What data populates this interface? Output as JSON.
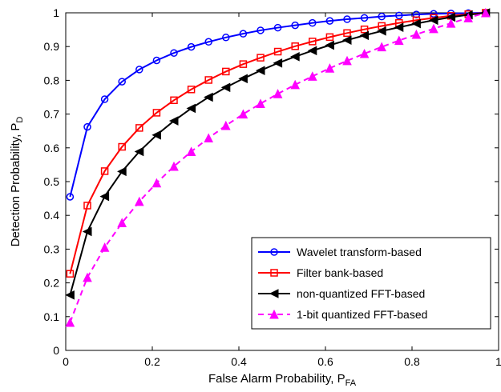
{
  "chart_data": {
    "type": "line",
    "xlabel": "False Alarm Probability, P",
    "xlabel_sub": "FA",
    "ylabel": "Detection Probability, P",
    "ylabel_sub": "D",
    "xlim": [
      0,
      1
    ],
    "ylim": [
      0,
      1
    ],
    "x_ticks": [
      "0",
      "0.2",
      "0.4",
      "0.6",
      "0.8",
      "1"
    ],
    "y_ticks": [
      "0",
      "0.1",
      "0.2",
      "0.3",
      "0.4",
      "0.5",
      "0.6",
      "0.7",
      "0.8",
      "0.9",
      "1"
    ],
    "grid": false,
    "legend_position": "bottom-right",
    "x": [
      0.01,
      0.05,
      0.09,
      0.13,
      0.17,
      0.21,
      0.25,
      0.29,
      0.33,
      0.37,
      0.41,
      0.45,
      0.49,
      0.53,
      0.57,
      0.61,
      0.65,
      0.69,
      0.73,
      0.77,
      0.81,
      0.85,
      0.89,
      0.93,
      0.97
    ],
    "series": [
      {
        "name": "Wavelet transform-based",
        "color": "#0000ff",
        "marker": "circle",
        "dash": "solid",
        "values": [
          0.455,
          0.662,
          0.744,
          0.796,
          0.832,
          0.859,
          0.881,
          0.899,
          0.914,
          0.927,
          0.938,
          0.948,
          0.956,
          0.963,
          0.97,
          0.976,
          0.981,
          0.985,
          0.989,
          0.992,
          0.995,
          0.997,
          0.998,
          0.999,
          1.0
        ]
      },
      {
        "name": "Filter bank-based",
        "color": "#ff0000",
        "marker": "square",
        "dash": "solid",
        "values": [
          0.227,
          0.429,
          0.531,
          0.603,
          0.659,
          0.704,
          0.741,
          0.773,
          0.801,
          0.826,
          0.848,
          0.867,
          0.885,
          0.901,
          0.915,
          0.928,
          0.94,
          0.951,
          0.961,
          0.97,
          0.978,
          0.985,
          0.991,
          0.996,
          1.0
        ]
      },
      {
        "name": "non-quantized FFT-based",
        "color": "#000000",
        "marker": "triangle-left",
        "dash": "solid",
        "values": [
          0.164,
          0.352,
          0.456,
          0.53,
          0.589,
          0.638,
          0.68,
          0.717,
          0.75,
          0.779,
          0.805,
          0.829,
          0.851,
          0.87,
          0.888,
          0.904,
          0.919,
          0.933,
          0.946,
          0.957,
          0.968,
          0.978,
          0.987,
          0.994,
          1.0
        ]
      },
      {
        "name": "1-bit quantized FFT-based",
        "color": "#ff00ff",
        "marker": "triangle-up",
        "dash": "dashed",
        "values": [
          0.083,
          0.216,
          0.305,
          0.378,
          0.441,
          0.496,
          0.545,
          0.589,
          0.629,
          0.666,
          0.7,
          0.731,
          0.76,
          0.787,
          0.812,
          0.836,
          0.858,
          0.879,
          0.899,
          0.918,
          0.936,
          0.953,
          0.969,
          0.985,
          1.0
        ]
      }
    ]
  }
}
